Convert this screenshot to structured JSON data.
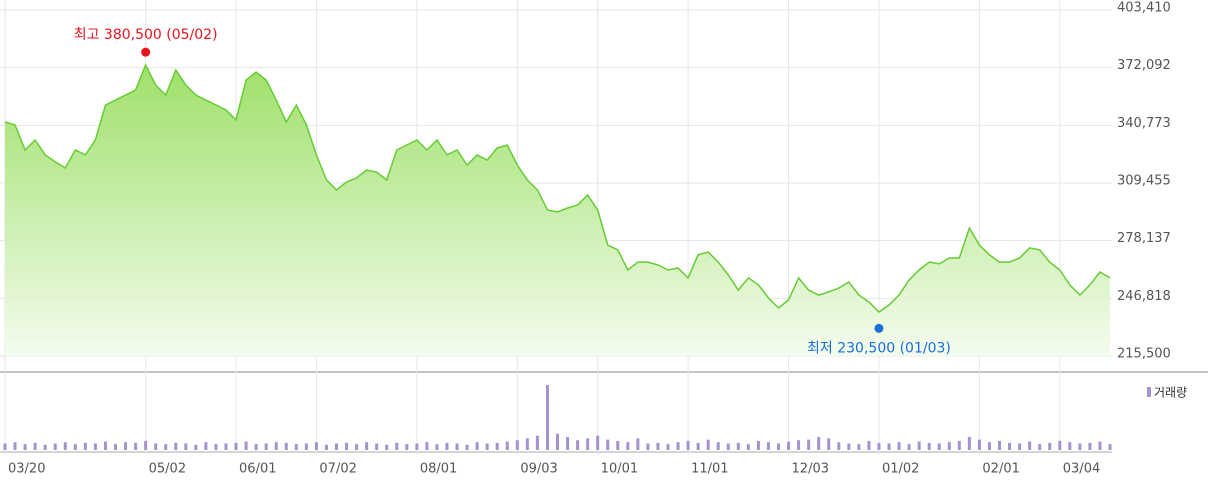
{
  "chart_data": [
    {
      "type": "area",
      "color": "#66cc33",
      "values": [
        342600,
        341000,
        327400,
        332800,
        324700,
        320900,
        317600,
        327400,
        324700,
        332800,
        351800,
        354500,
        357200,
        360000,
        373500,
        362700,
        357200,
        370800,
        362700,
        357200,
        354500,
        351800,
        349100,
        343700,
        365400,
        369700,
        365400,
        354500,
        342600,
        351800,
        341000,
        324700,
        311100,
        305700,
        310000,
        312200,
        316500,
        315400,
        311100,
        327400,
        330100,
        332800,
        327400,
        332800,
        324700,
        327400,
        319200,
        324700,
        321900,
        328500,
        330100,
        319200,
        311100,
        305700,
        294800,
        293700,
        295900,
        297500,
        302900,
        294800,
        275800,
        273100,
        262200,
        266500,
        266500,
        264900,
        262200,
        263300,
        257900,
        270400,
        272000,
        266500,
        259500,
        251300,
        257900,
        254100,
        247000,
        241600,
        245900,
        257900,
        251300,
        248600,
        250300,
        252400,
        255700,
        248600,
        244800,
        239400,
        243200,
        248600,
        256800,
        262200,
        266500,
        265500,
        268700,
        268700,
        285000,
        275800,
        270400,
        266500,
        266500,
        268700,
        274200,
        273100,
        266500,
        262200,
        254100,
        248600,
        254100,
        261100,
        257900
      ],
      "xlim": [
        0,
        110
      ],
      "ylim": [
        215500,
        403410
      ],
      "yticks": [
        {
          "value": 403410,
          "label": "403,410"
        },
        {
          "value": 372092,
          "label": "372,092"
        },
        {
          "value": 340773,
          "label": "340,773"
        },
        {
          "value": 309455,
          "label": "309,455"
        },
        {
          "value": 278137,
          "label": "278,137"
        },
        {
          "value": 246818,
          "label": "246,818"
        },
        {
          "value": 215500,
          "label": "215,500"
        }
      ],
      "grid": true,
      "annotations": [
        {
          "text": "최고 380,500 (05/02)",
          "x": 14,
          "y": 380500,
          "color": "#e8141e",
          "position": "above"
        },
        {
          "text": "최저 230,500 (01/03)",
          "x": 87,
          "y": 230500,
          "color": "#1a6ed8",
          "position": "below"
        }
      ]
    },
    {
      "type": "bar",
      "series": [
        {
          "name": "거래량",
          "color": "#a493d0",
          "values": [
            10,
            12,
            9,
            11,
            8,
            10,
            12,
            9,
            11,
            10,
            13,
            9,
            12,
            11,
            14,
            10,
            9,
            11,
            10,
            8,
            12,
            9,
            10,
            11,
            13,
            9,
            10,
            12,
            11,
            9,
            10,
            12,
            8,
            10,
            11,
            9,
            12,
            10,
            8,
            11,
            9,
            10,
            12,
            9,
            11,
            10,
            8,
            12,
            10,
            11,
            13,
            15,
            18,
            22,
            100,
            25,
            20,
            15,
            18,
            22,
            16,
            14,
            12,
            18,
            10,
            11,
            9,
            12,
            14,
            11,
            16,
            12,
            10,
            11,
            9,
            14,
            12,
            10,
            13,
            15,
            16,
            20,
            18,
            12,
            10,
            9,
            14,
            11,
            10,
            12,
            9,
            13,
            11,
            10,
            12,
            14,
            20,
            16,
            12,
            14,
            11,
            10,
            13,
            9,
            11,
            14,
            12,
            10,
            11,
            13,
            9
          ]
        }
      ],
      "xlim": [
        0,
        110
      ],
      "ylim": [
        0,
        100
      ],
      "xticks": [
        {
          "value": 0,
          "label": "03/20"
        },
        {
          "value": 14,
          "label": "05/02"
        },
        {
          "value": 23,
          "label": "06/01"
        },
        {
          "value": 31,
          "label": "07/02"
        },
        {
          "value": 41,
          "label": "08/01"
        },
        {
          "value": 51,
          "label": "09/03"
        },
        {
          "value": 59,
          "label": "10/01"
        },
        {
          "value": 68,
          "label": "11/01"
        },
        {
          "value": 78,
          "label": "12/03"
        },
        {
          "value": 87,
          "label": "01/02"
        },
        {
          "value": 97,
          "label": "02/01"
        },
        {
          "value": 105,
          "label": "03/04"
        }
      ],
      "legend": "top-right"
    }
  ]
}
